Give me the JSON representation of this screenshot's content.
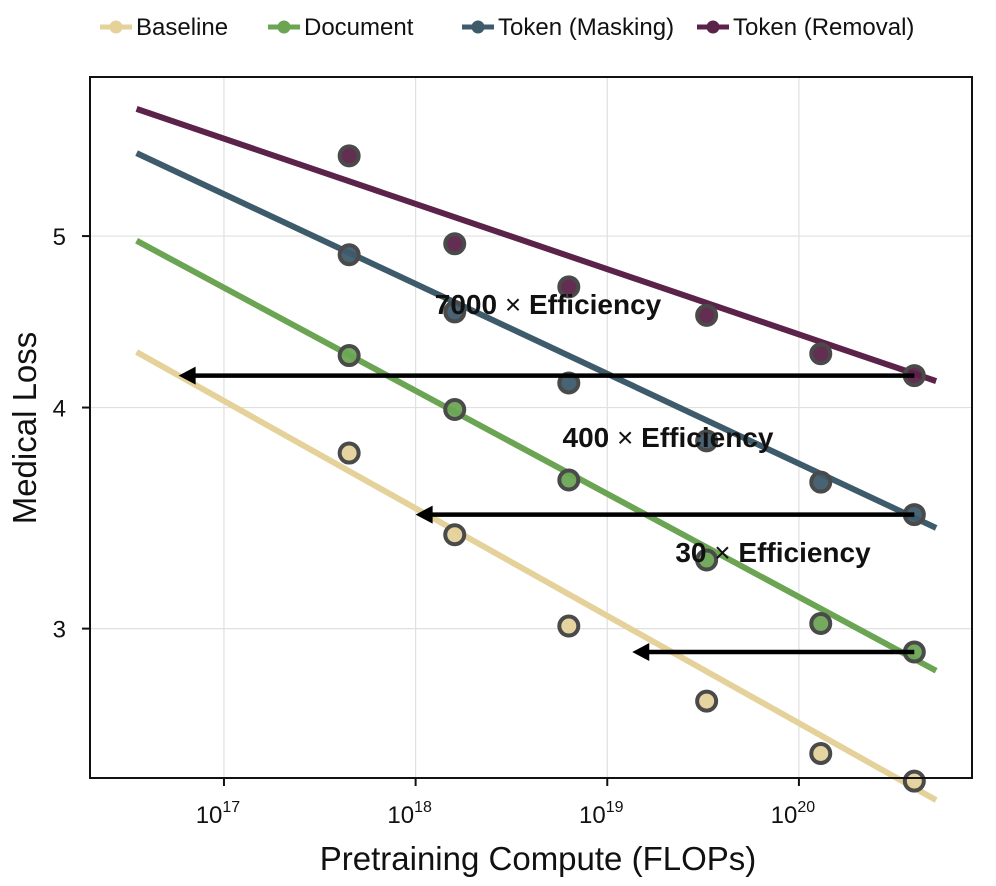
{
  "chart_data": {
    "type": "scatter",
    "xscale": "log",
    "yscale": "log",
    "xlabel": "Pretraining Compute (FLOPs)",
    "ylabel": "Medical Loss",
    "xlim": [
      2e+16,
      8e+20
    ],
    "ylim": [
      2.47,
      6.15
    ],
    "x_ticks": [
      {
        "value": 1e+17,
        "base": "10",
        "exp": "17"
      },
      {
        "value": 1e+18,
        "base": "10",
        "exp": "18"
      },
      {
        "value": 1e+19,
        "base": "10",
        "exp": "19"
      },
      {
        "value": 1e+20,
        "base": "10",
        "exp": "20"
      }
    ],
    "y_ticks": [
      {
        "value": 3,
        "label": "3"
      },
      {
        "value": 4,
        "label": "4"
      },
      {
        "value": 5,
        "label": "5"
      }
    ],
    "grid": true,
    "legend_position": "top",
    "series": [
      {
        "name": "Baseline",
        "color": "#E5D29B",
        "x": [
          4.5e+17,
          1.6e+18,
          6.3e+18,
          3.3e+19,
          1.3e+20,
          4e+20
        ],
        "y": [
          3.77,
          3.39,
          3.01,
          2.73,
          2.55,
          2.46
        ],
        "fit": {
          "x0": 3.5e+16,
          "y0": 4.3,
          "x1": 5.2e+20,
          "y1": 2.4
        }
      },
      {
        "name": "Document",
        "color": "#6BA554",
        "x": [
          4.5e+17,
          1.6e+18,
          6.3e+18,
          3.3e+19,
          1.3e+20,
          4e+20
        ],
        "y": [
          4.28,
          3.99,
          3.64,
          3.28,
          3.02,
          2.91
        ],
        "fit": {
          "x0": 3.5e+16,
          "y0": 4.97,
          "x1": 5.2e+20,
          "y1": 2.84
        }
      },
      {
        "name": "Token (Masking)",
        "color": "#3E5B6B",
        "x": [
          4.5e+17,
          1.6e+18,
          6.3e+18,
          3.3e+19,
          1.3e+20,
          4e+20
        ],
        "y": [
          4.88,
          4.53,
          4.13,
          3.83,
          3.63,
          3.48
        ],
        "fit": {
          "x0": 3.5e+16,
          "y0": 5.57,
          "x1": 5.2e+20,
          "y1": 3.42
        }
      },
      {
        "name": "Token (Removal)",
        "color": "#5B2349",
        "x": [
          4.5e+17,
          1.6e+18,
          6.3e+18,
          3.3e+19,
          1.3e+20,
          4e+20
        ],
        "y": [
          5.55,
          4.95,
          4.68,
          4.51,
          4.29,
          4.17
        ],
        "fit": {
          "x0": 3.5e+16,
          "y0": 5.9,
          "x1": 5.2e+20,
          "y1": 4.14
        }
      }
    ],
    "annotations": [
      {
        "text_num": "7000",
        "text_x": "×",
        "text_word": "Efficiency",
        "from_x": 4e+20,
        "to_x": 5.8e+16,
        "y": 4.17
      },
      {
        "text_num": "400",
        "text_x": "×",
        "text_word": "Efficiency",
        "from_x": 4e+20,
        "to_x": 1e+18,
        "y": 3.48
      },
      {
        "text_num": "30",
        "text_x": "×",
        "text_word": "Efficiency",
        "from_x": 4e+20,
        "to_x": 1.35e+19,
        "y": 2.91
      }
    ]
  }
}
